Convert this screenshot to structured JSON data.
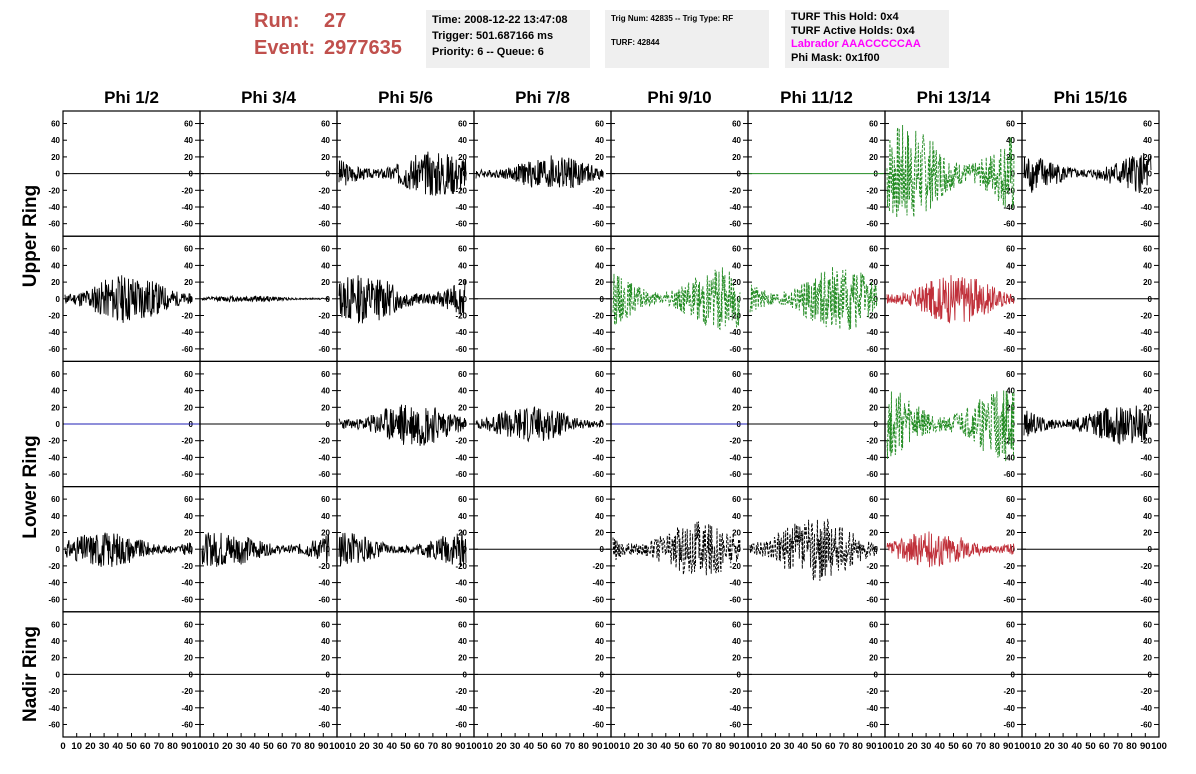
{
  "header": {
    "run_label": "Run:",
    "run_value": "27",
    "event_label": "Event:",
    "event_value": "2977635",
    "time": "Time: 2008-12-22 13:47:08",
    "trigger": "Trigger: 501.687166 ms",
    "priority": "Priority: 6 -- Queue: 6",
    "trig_num": "Trig Num: 42835 -- Trig Type: RF",
    "turf": "TURF: 42844",
    "turf_this_hold": "TURF This Hold: 0x4",
    "turf_active_holds": "TURF Active Holds: 0x4",
    "labrador": "Labrador AAACCCCCAA",
    "phi_mask": "Phi Mask: 0x1f00"
  },
  "colors": {
    "run_text": "#c0504d",
    "panel_bg": "#efefef",
    "labrador": "#ff00ff",
    "trace_black": "#000000",
    "trace_green": "#228b22",
    "trace_red": "#c0303a",
    "trace_flat_green": "#228b22",
    "trace_flat_blue": "#1f1fb4"
  },
  "chart_data": {
    "type": "line",
    "columns": [
      "Phi 1/2",
      "Phi 3/4",
      "Phi 5/6",
      "Phi 7/8",
      "Phi 9/10",
      "Phi 11/12",
      "Phi 13/14",
      "Phi 15/16"
    ],
    "row_groups": [
      {
        "label": "Upper Ring",
        "rows": [
          0,
          1
        ]
      },
      {
        "label": "Lower Ring",
        "rows": [
          2,
          3
        ]
      },
      {
        "label": "Nadir Ring",
        "rows": [
          4
        ]
      }
    ],
    "ylim": [
      -75,
      75
    ],
    "yticks": [
      60,
      40,
      20,
      0,
      -20,
      -40,
      -60
    ],
    "yticks_right": [
      60,
      40,
      20,
      0,
      -20,
      -40,
      -60
    ],
    "xlim": [
      0,
      100
    ],
    "xtick_labels": [
      [
        "0",
        "10",
        "20",
        "30",
        "40",
        "50",
        "60",
        "70",
        "80",
        "90",
        "100"
      ],
      [
        "10",
        "20",
        "30",
        "40",
        "50",
        "60",
        "70",
        "80",
        "90",
        "100"
      ],
      [
        "10",
        "20",
        "30",
        "40",
        "50",
        "60",
        "70",
        "80",
        "90",
        "100"
      ],
      [
        "10",
        "20",
        "30",
        "40",
        "50",
        "60",
        "70",
        "80",
        "90",
        "100"
      ],
      [
        "10",
        "20",
        "30",
        "40",
        "50",
        "60",
        "70",
        "80",
        "90",
        "100"
      ],
      [
        "10",
        "20",
        "30",
        "40",
        "50",
        "60",
        "70",
        "80",
        "90",
        "100"
      ],
      [
        "10",
        "20",
        "30",
        "40",
        "50",
        "60",
        "70",
        "80",
        "90",
        "100"
      ],
      [
        "10",
        "20",
        "30",
        "40",
        "50",
        "60",
        "70",
        "80",
        "90",
        "100"
      ]
    ],
    "traces": [
      [
        {
          "style": "flat",
          "color": "black"
        },
        {
          "style": "flat",
          "color": "black"
        },
        {
          "style": "noise",
          "color": "black",
          "amplitude": 28,
          "seed": 3
        },
        {
          "style": "noise",
          "color": "black",
          "amplitude": 22,
          "seed": 4
        },
        {
          "style": "flat",
          "color": "black"
        },
        {
          "style": "flat",
          "color": "flat_green"
        },
        {
          "style": "noise",
          "color": "green",
          "amplitude": 60,
          "seed": 7,
          "dashed": true
        },
        {
          "style": "noise",
          "color": "black",
          "amplitude": 25,
          "seed": 8
        }
      ],
      [
        {
          "style": "noise",
          "color": "black",
          "amplitude": 30,
          "seed": 11
        },
        {
          "style": "noise",
          "color": "black",
          "amplitude": 4,
          "seed": 12
        },
        {
          "style": "noise",
          "color": "black",
          "amplitude": 30,
          "seed": 13
        },
        {
          "style": "flat",
          "color": "black"
        },
        {
          "style": "noise",
          "color": "green",
          "amplitude": 38,
          "seed": 15,
          "dashed": true
        },
        {
          "style": "noise",
          "color": "green",
          "amplitude": 40,
          "seed": 16,
          "dashed": true
        },
        {
          "style": "noise",
          "color": "red",
          "amplitude": 30,
          "seed": 17
        },
        {
          "style": "flat",
          "color": "black"
        }
      ],
      [
        {
          "style": "flat",
          "color": "flat_blue"
        },
        {
          "style": "flat",
          "color": "black"
        },
        {
          "style": "noise",
          "color": "black",
          "amplitude": 28,
          "seed": 23
        },
        {
          "style": "noise",
          "color": "black",
          "amplitude": 22,
          "seed": 24
        },
        {
          "style": "flat",
          "color": "flat_blue"
        },
        {
          "style": "flat",
          "color": "black"
        },
        {
          "style": "noise",
          "color": "green",
          "amplitude": 45,
          "seed": 27,
          "dashed": true
        },
        {
          "style": "noise",
          "color": "black",
          "amplitude": 25,
          "seed": 28
        }
      ],
      [
        {
          "style": "noise",
          "color": "black",
          "amplitude": 22,
          "seed": 31
        },
        {
          "style": "noise",
          "color": "black",
          "amplitude": 22,
          "seed": 32
        },
        {
          "style": "noise",
          "color": "black",
          "amplitude": 22,
          "seed": 33
        },
        {
          "style": "flat",
          "color": "black"
        },
        {
          "style": "noise",
          "color": "black",
          "amplitude": 35,
          "seed": 35,
          "dashed": true
        },
        {
          "style": "noise",
          "color": "black",
          "amplitude": 40,
          "seed": 36,
          "dashed": true
        },
        {
          "style": "noise",
          "color": "red",
          "amplitude": 22,
          "seed": 37
        },
        {
          "style": "flat",
          "color": "black"
        }
      ],
      [
        {
          "style": "flat",
          "color": "black"
        },
        {
          "style": "flat",
          "color": "black"
        },
        {
          "style": "flat",
          "color": "black"
        },
        {
          "style": "flat",
          "color": "black"
        },
        {
          "style": "flat",
          "color": "black"
        },
        {
          "style": "flat",
          "color": "black"
        },
        {
          "style": "flat",
          "color": "black"
        },
        {
          "style": "flat",
          "color": "black"
        }
      ]
    ]
  }
}
